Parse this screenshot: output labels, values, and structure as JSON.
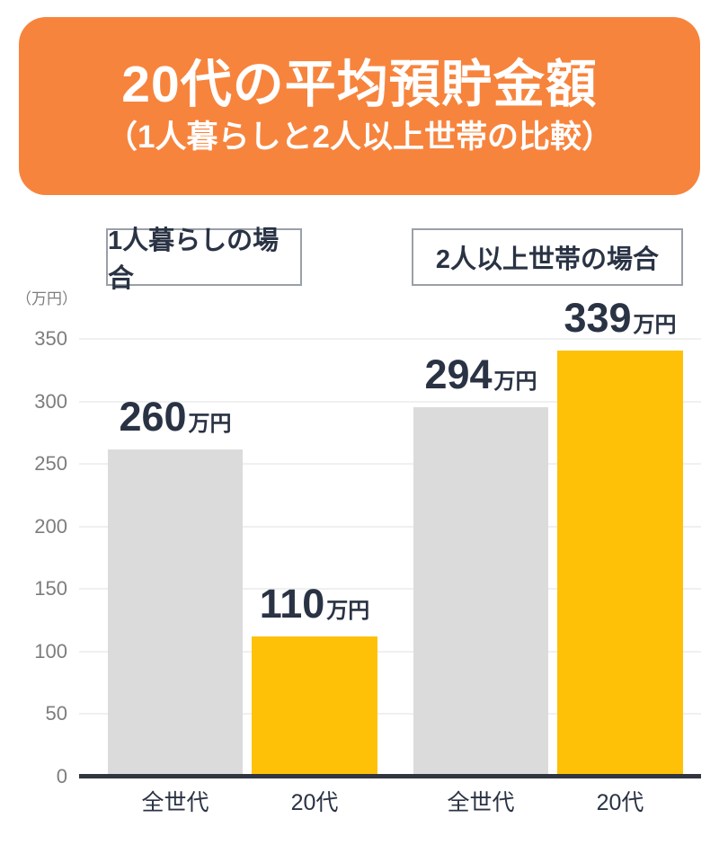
{
  "title": {
    "main": "20代の平均預貯金額",
    "sub": "（1人暮らしと2人以上世帯の比較）"
  },
  "group_labels": [
    "1人暮らしの場合",
    "2人以上世帯の場合"
  ],
  "axis": {
    "unit_label": "（万円）",
    "yticks": [
      350,
      300,
      250,
      200,
      150,
      100,
      50,
      0
    ]
  },
  "bars": [
    {
      "group": "1人暮らしの場合",
      "category": "全世代",
      "value": 260,
      "value_text": "260",
      "unit": "万円",
      "color": "#DBDBDB"
    },
    {
      "group": "1人暮らしの場合",
      "category": "20代",
      "value": 110,
      "value_text": "110",
      "unit": "万円",
      "color": "#FFC107"
    },
    {
      "group": "2人以上世帯の場合",
      "category": "全世代",
      "value": 294,
      "value_text": "294",
      "unit": "万円",
      "color": "#DBDBDB"
    },
    {
      "group": "2人以上世帯の場合",
      "category": "20代",
      "value": 339,
      "value_text": "339",
      "unit": "万円",
      "color": "#FFC107"
    }
  ],
  "colors": {
    "banner": "#F7843D",
    "title_text": "#FFFFFF",
    "dark_text": "#2A3344",
    "axis_line": "#30353F",
    "grid_line": "#F0F0F0",
    "tick_text": "#7D7D7D",
    "box_border": "#9AA0A8",
    "bar_all_generations": "#DBDBDB",
    "bar_twenties": "#FFC107"
  },
  "chart_data": {
    "type": "bar",
    "title": "20代の平均預貯金額（1人暮らしと2人以上世帯の比較）",
    "categories": [
      "全世代",
      "20代"
    ],
    "series": [
      {
        "name": "1人暮らしの場合",
        "values": [
          260,
          110
        ]
      },
      {
        "name": "2人以上世帯の場合",
        "values": [
          294,
          339
        ]
      }
    ],
    "ylabel": "万円",
    "ylim": [
      0,
      350
    ],
    "yticks": [
      0,
      50,
      100,
      150,
      200,
      250,
      300,
      350
    ],
    "grid": true,
    "legend_position": "boxes-above-groups",
    "bar_colors": {
      "全世代": "#DBDBDB",
      "20代": "#FFC107"
    },
    "data_labels": [
      "260万円",
      "110万円",
      "294万円",
      "339万円"
    ]
  }
}
